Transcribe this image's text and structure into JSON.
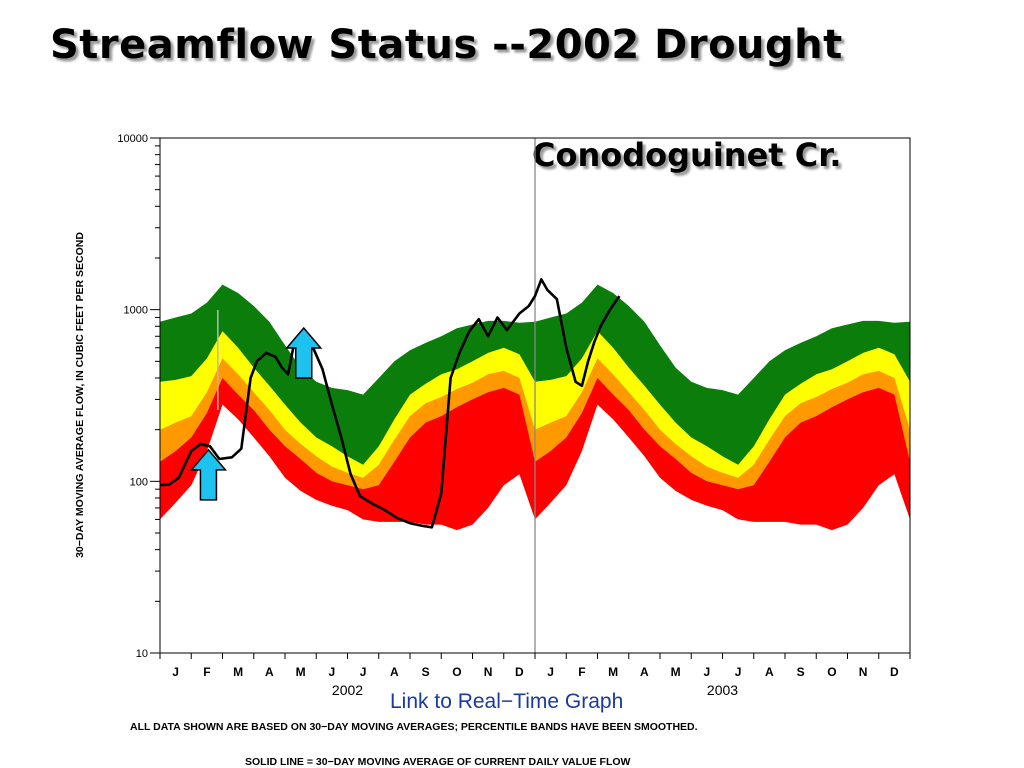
{
  "slide": {
    "title": "Streamflow Status --2002 Drought",
    "station": "Conodoguinet Cr.",
    "link_text": "Link to Real−Time Graph",
    "note": "ALL DATA SHOWN ARE BASED ON 30−DAY MOVING AVERAGES;  PERCENTILE BANDS HAVE BEEN SMOOTHED.",
    "solid_line_note": "SOLID LINE  =  30−DAY MOVING AVERAGE OF CURRENT DAILY VALUE FLOW"
  },
  "chart_data": {
    "type": "area",
    "title": "Streamflow Status --2002 Drought",
    "ylabel": "30−DAY MOVING AVERAGE FLOW, IN CUBIC FEET PER SECOND",
    "yscale": "log",
    "ylim": [
      10,
      10000
    ],
    "y_tick_labels": [
      "10",
      "100",
      "1000",
      "10000"
    ],
    "x_month_labels": [
      "J",
      "F",
      "M",
      "A",
      "M",
      "J",
      "J",
      "A",
      "S",
      "O",
      "N",
      "D",
      "J",
      "F",
      "M",
      "A",
      "M",
      "J",
      "J",
      "A",
      "S",
      "O",
      "N",
      "D"
    ],
    "year_labels": [
      "2002",
      "2003"
    ],
    "xlim_months": [
      0,
      24
    ],
    "band_months": [
      0,
      0.5,
      1,
      1.5,
      2,
      2.5,
      3,
      3.5,
      4,
      4.5,
      5,
      5.5,
      6,
      6.5,
      7,
      7.5,
      8,
      8.5,
      9,
      9.5,
      10,
      10.5,
      11,
      11.5,
      12
    ],
    "bands": [
      {
        "band": "green",
        "color": "#0a7d0a",
        "upper": [
          850,
          900,
          950,
          1100,
          1400,
          1250,
          1050,
          850,
          620,
          460,
          380,
          350,
          340,
          320,
          400,
          500,
          580,
          640,
          700,
          780,
          820,
          860,
          860,
          840,
          850
        ]
      },
      {
        "band": "yellow",
        "color": "#ffff00",
        "upper": [
          380,
          390,
          410,
          520,
          750,
          600,
          460,
          360,
          280,
          220,
          180,
          160,
          140,
          125,
          160,
          230,
          320,
          370,
          420,
          450,
          500,
          560,
          600,
          550,
          380
        ]
      },
      {
        "band": "orange",
        "color": "#ff9900",
        "upper": [
          200,
          220,
          240,
          330,
          520,
          420,
          330,
          260,
          200,
          165,
          140,
          122,
          112,
          105,
          125,
          175,
          240,
          285,
          310,
          345,
          375,
          420,
          440,
          400,
          200
        ]
      },
      {
        "band": "red",
        "color": "#ff0000",
        "upper": [
          130,
          150,
          180,
          250,
          400,
          320,
          260,
          200,
          160,
          135,
          112,
          100,
          95,
          90,
          95,
          130,
          180,
          220,
          240,
          270,
          300,
          330,
          350,
          320,
          130
        ]
      },
      {
        "band": "white-lower",
        "color": "#ffffff",
        "upper": [
          60,
          75,
          95,
          150,
          280,
          230,
          180,
          140,
          105,
          88,
          78,
          72,
          68,
          60,
          58,
          58,
          58,
          56,
          56,
          52,
          56,
          70,
          95,
          110,
          60
        ]
      }
    ],
    "series": [
      {
        "color": "#000000",
        "x_months": [
          0,
          0.3,
          0.6,
          1.0,
          1.3,
          1.6,
          1.9,
          2.3,
          2.6,
          2.9,
          3.1,
          3.4,
          3.7,
          3.9,
          4.1,
          4.3,
          4.6,
          4.9,
          5.2,
          5.5,
          5.8,
          6.1,
          6.4,
          6.8,
          7.2,
          7.6,
          8.0,
          8.4,
          8.7,
          9.0,
          9.3,
          9.6,
          9.9,
          10.2,
          10.5,
          10.8,
          11.1,
          11.5,
          11.8,
          12.0,
          12.2,
          12.4,
          12.7,
          13.0,
          13.3,
          13.5,
          13.7,
          13.9,
          14.1,
          14.4,
          14.7
        ],
        "y": [
          95,
          96,
          105,
          150,
          165,
          160,
          135,
          138,
          155,
          400,
          500,
          560,
          530,
          460,
          420,
          650,
          680,
          600,
          450,
          280,
          180,
          110,
          82,
          74,
          68,
          61,
          57,
          55,
          54,
          85,
          400,
          570,
          750,
          880,
          700,
          900,
          760,
          950,
          1050,
          1200,
          1500,
          1300,
          1150,
          600,
          380,
          360,
          500,
          650,
          800,
          1000,
          1200
        ]
      }
    ],
    "legend": "none",
    "grid": false,
    "annotations": [
      {
        "type": "arrow-up",
        "color": "#1ec2ee",
        "x_month": 1.55,
        "y": 78
      },
      {
        "type": "arrow-up",
        "color": "#1ec2ee",
        "x_month": 4.6,
        "y": 400
      }
    ]
  }
}
